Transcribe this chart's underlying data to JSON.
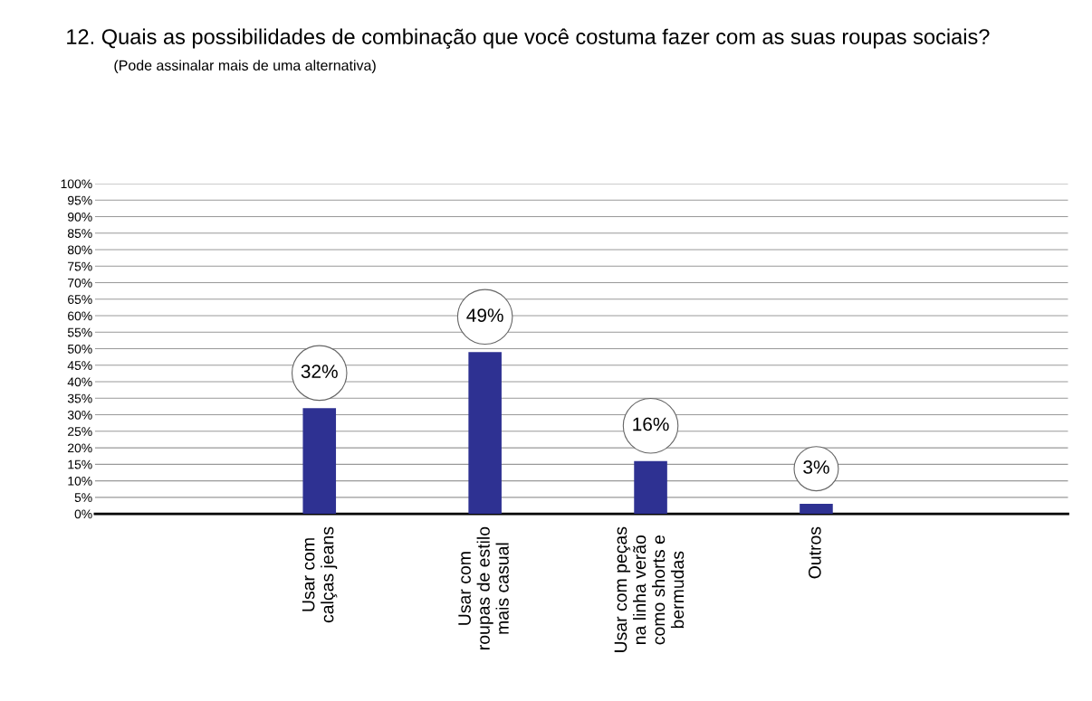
{
  "chart_data": {
    "type": "bar",
    "title": "12. Quais as possibilidades de combinação que você costuma fazer com as suas roupas sociais?",
    "subtitle": "(Pode assinalar mais de uma alternativa)",
    "categories": [
      "Usar com\ncalças jeans",
      "Usar com\nroupas de estilo\nmais casual",
      "Usar com peças\nna linha verão\ncomo shorts e\nbermudas",
      "Outros"
    ],
    "values": [
      32,
      49,
      16,
      3
    ],
    "color": "#2e3192",
    "value_labels": [
      "32%",
      "49%",
      "16%",
      "3%"
    ],
    "ylim": [
      0,
      100
    ],
    "yticks": [
      {
        "value": 0,
        "label": "0%"
      },
      {
        "value": 5,
        "label": "5%"
      },
      {
        "value": 10,
        "label": "10%"
      },
      {
        "value": 15,
        "label": "15%"
      },
      {
        "value": 20,
        "label": "20%"
      },
      {
        "value": 25,
        "label": "25%"
      },
      {
        "value": 30,
        "label": "30%"
      },
      {
        "value": 35,
        "label": "35%"
      },
      {
        "value": 40,
        "label": "40%"
      },
      {
        "value": 45,
        "label": "45%"
      },
      {
        "value": 50,
        "label": "50%"
      },
      {
        "value": 55,
        "label": "55%"
      },
      {
        "value": 60,
        "label": "60%"
      },
      {
        "value": 65,
        "label": "65%"
      },
      {
        "value": 70,
        "label": "70%"
      },
      {
        "value": 75,
        "label": "75%"
      },
      {
        "value": 80,
        "label": "80%"
      },
      {
        "value": 85,
        "label": "85%"
      },
      {
        "value": 90,
        "label": "90%"
      },
      {
        "value": 95,
        "label": "95%"
      },
      {
        "value": 100,
        "label": "100%"
      }
    ],
    "grid": "y"
  }
}
